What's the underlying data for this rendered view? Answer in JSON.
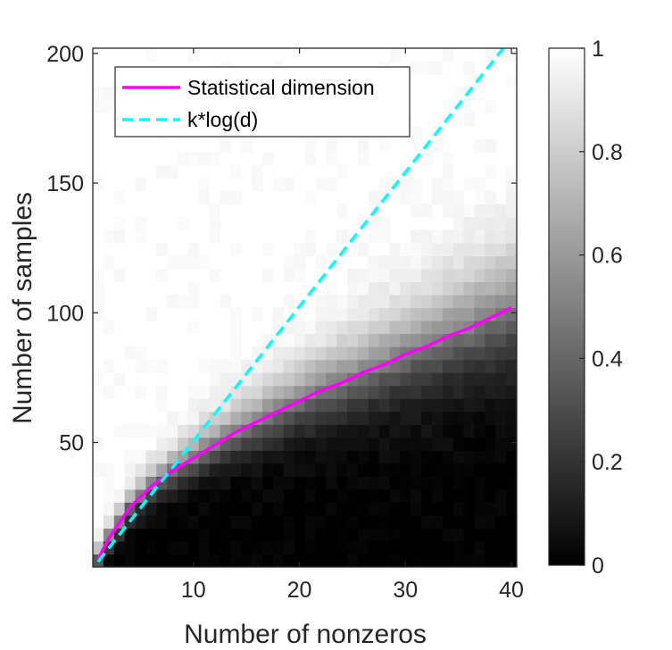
{
  "chart_data": {
    "type": "heatmap",
    "xlabel": "Number of nonzeros",
    "ylabel": "Number of samples",
    "xlim": [
      0.5,
      40.5
    ],
    "ylim": [
      2,
      202
    ],
    "x_cell_range": [
      1,
      40
    ],
    "y_cell_range": [
      2,
      202
    ],
    "y_cell_step": 5,
    "xticks": [
      10,
      20,
      30,
      40
    ],
    "yticks": [
      50,
      100,
      150,
      200
    ],
    "colormap": "gray",
    "clim": [
      0,
      1
    ],
    "colorbar_ticks": [
      0,
      0.2,
      0.4,
      0.6,
      0.8,
      1
    ],
    "colorbar_tick_labels": [
      "0",
      "0.2",
      "0.4",
      "0.6",
      "0.8",
      "1"
    ],
    "legend_location": "top-left",
    "series": [
      {
        "name": "Statistical dimension",
        "style": "solid",
        "color": "#ff00ff",
        "x": [
          1,
          2,
          3,
          4,
          5,
          6,
          8,
          10,
          12,
          14,
          16,
          18,
          20,
          22,
          24,
          26,
          28,
          30,
          32,
          34,
          36,
          38,
          40
        ],
        "y": [
          5,
          13,
          19,
          25,
          29,
          33,
          39,
          44,
          49,
          54,
          58,
          62,
          66,
          70,
          73,
          77,
          80,
          84,
          87,
          91,
          94,
          98,
          102
        ]
      },
      {
        "name": "k*log(d)",
        "style": "dashed",
        "color": "#00ffff",
        "x": [
          1,
          40
        ],
        "y": [
          4,
          206
        ]
      }
    ]
  }
}
